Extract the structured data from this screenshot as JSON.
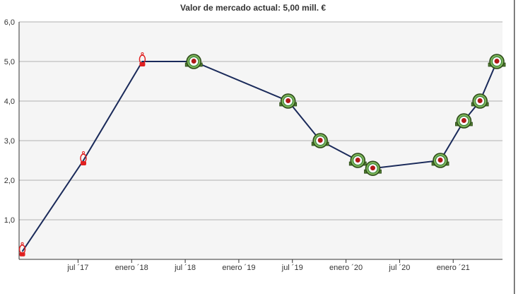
{
  "chart_data": {
    "type": "line",
    "title": "Valor de mercado actual: 5,00 mill. €",
    "xlabel": "",
    "ylabel": "",
    "ylim": [
      0,
      6
    ],
    "yticks": [
      "1,0",
      "2,0",
      "3,0",
      "4,0",
      "5,0",
      "6,0"
    ],
    "xticks": [
      {
        "label": "jul ´17",
        "t": 2017.5
      },
      {
        "label": "enero ´18",
        "t": 2018.0
      },
      {
        "label": "jul ´18",
        "t": 2018.5
      },
      {
        "label": "enero ´19",
        "t": 2019.0
      },
      {
        "label": "jul ´19",
        "t": 2019.5
      },
      {
        "label": "enero ´20",
        "t": 2020.0
      },
      {
        "label": "jul ´20",
        "t": 2020.5
      },
      {
        "label": "enero ´21",
        "t": 2021.0
      }
    ],
    "xlim": [
      2016.95,
      2021.46
    ],
    "series": [
      {
        "name": "Valor de mercado",
        "color": "#1a2a5a",
        "points": [
          {
            "t": 2016.98,
            "value": 0.2,
            "club": "red"
          },
          {
            "t": 2017.55,
            "value": 2.5,
            "club": "red"
          },
          {
            "t": 2018.1,
            "value": 5.0,
            "club": "red"
          },
          {
            "t": 2018.58,
            "value": 5.0,
            "club": "green"
          },
          {
            "t": 2019.46,
            "value": 4.0,
            "club": "green"
          },
          {
            "t": 2019.76,
            "value": 3.0,
            "club": "green"
          },
          {
            "t": 2020.11,
            "value": 2.5,
            "club": "green"
          },
          {
            "t": 2020.25,
            "value": 2.3,
            "club": "green"
          },
          {
            "t": 2020.88,
            "value": 2.5,
            "club": "green"
          },
          {
            "t": 2021.1,
            "value": 3.5,
            "club": "green"
          },
          {
            "t": 2021.25,
            "value": 4.0,
            "club": "green"
          },
          {
            "t": 2021.56,
            "value": 5.0,
            "club": "green"
          }
        ]
      }
    ],
    "colors": {
      "plot_bg": "#f5f5f5",
      "grid": "#c8c8c8",
      "axis": "#333333",
      "frame": "#555555",
      "line": "#1a2a5a",
      "red_marker": "#e02020",
      "green_marker": "#2e7d32"
    }
  }
}
